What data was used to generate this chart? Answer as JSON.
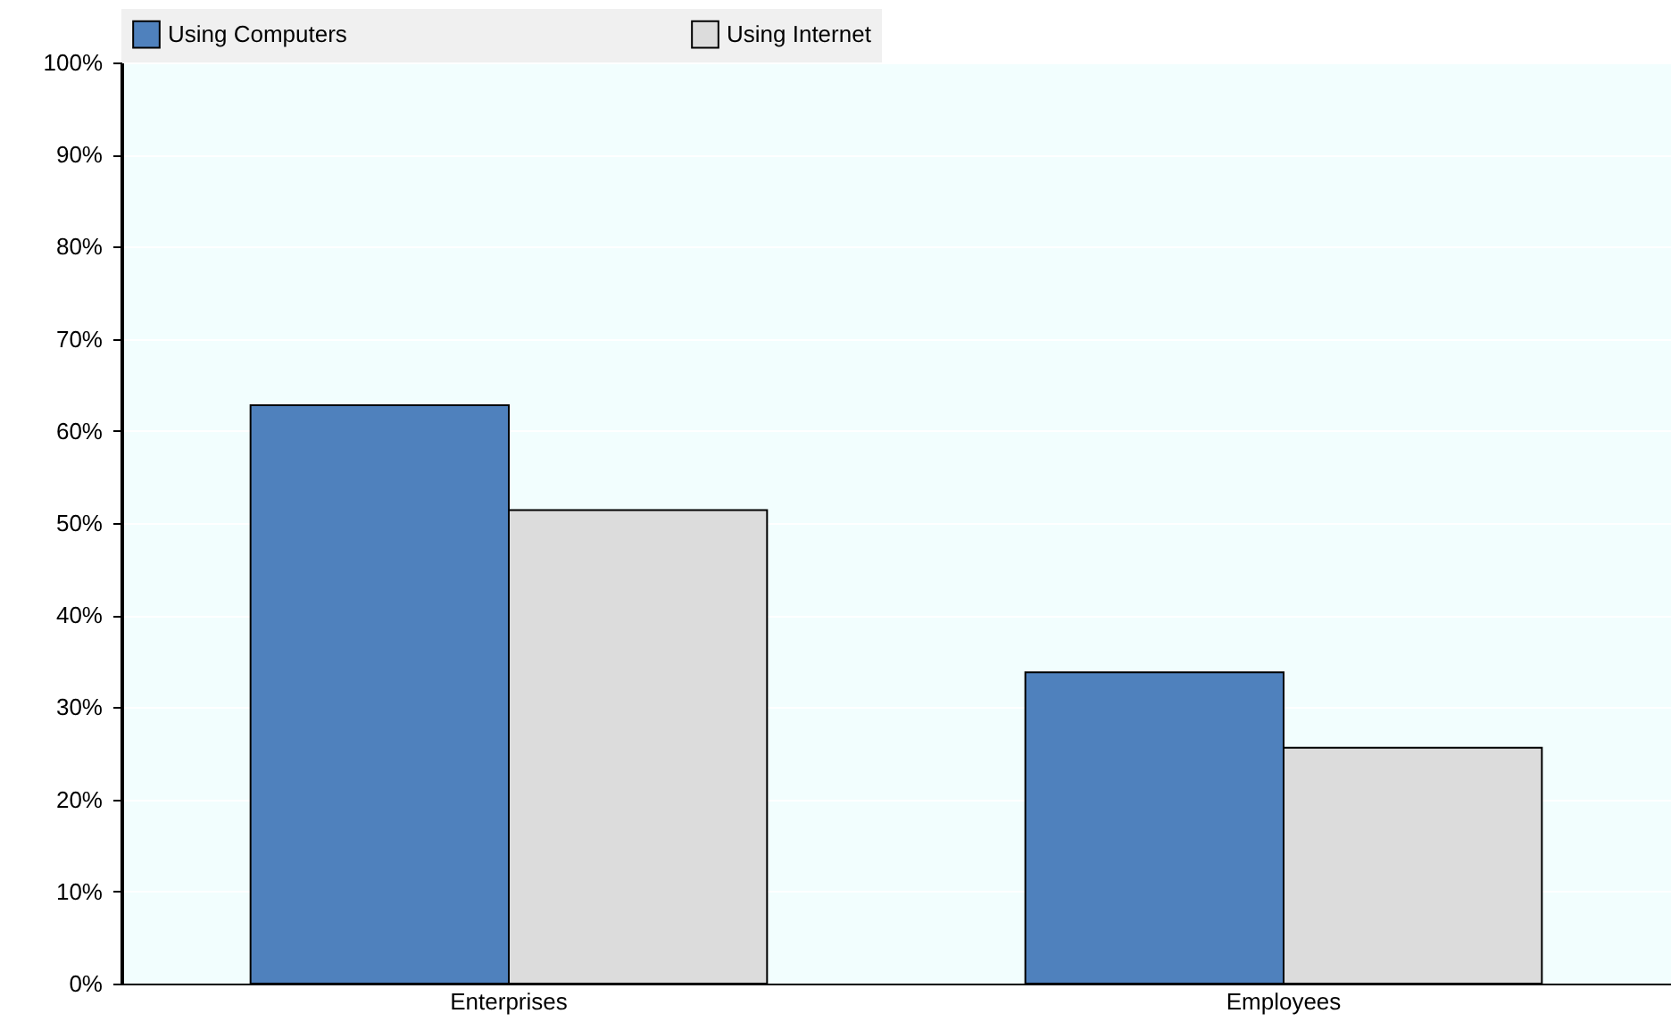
{
  "chart_data": {
    "type": "bar",
    "categories": [
      "Enterprises",
      "Employees"
    ],
    "series": [
      {
        "name": "Using Computers",
        "color": "#4f81bd",
        "values": [
          62.8,
          33.8
        ]
      },
      {
        "name": "Using Internet",
        "color": "#dcdcdc",
        "values": [
          51.4,
          25.6
        ]
      }
    ],
    "ylim": [
      0,
      100
    ],
    "yticks": [
      {
        "value": 0,
        "label": "0%"
      },
      {
        "value": 10,
        "label": "10%"
      },
      {
        "value": 20,
        "label": "20%"
      },
      {
        "value": 30,
        "label": "30%"
      },
      {
        "value": 40,
        "label": "40%"
      },
      {
        "value": 50,
        "label": "50%"
      },
      {
        "value": 60,
        "label": "60%"
      },
      {
        "value": 70,
        "label": "70%"
      },
      {
        "value": 80,
        "label": "80%"
      },
      {
        "value": 90,
        "label": "90%"
      },
      {
        "value": 100,
        "label": "100%"
      }
    ],
    "grid": "y",
    "legend": "top"
  }
}
